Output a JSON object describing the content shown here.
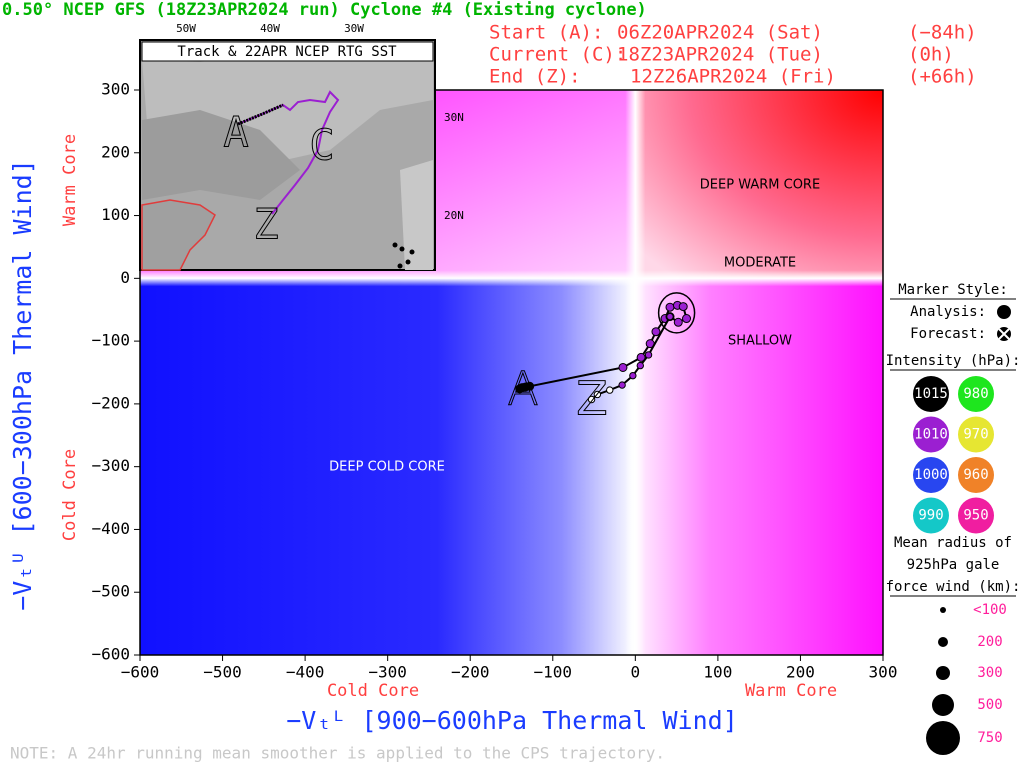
{
  "chart_data": {
    "type": "line",
    "title": "0.50° NCEP GFS (18Z23APR2024 run) Cyclone #4 (Existing cyclone)",
    "header": [
      [
        "Start (A):",
        "06Z20APR2024 (Sat)",
        "(−84h)"
      ],
      [
        "Current (C):",
        "18Z23APR2024 (Tue)",
        "(0h)"
      ],
      [
        "End (Z):",
        "12Z26APR2024 (Fri)",
        "(+66h)"
      ]
    ],
    "x_label": "−Vₜᴸ [900−600hPa Thermal Wind]",
    "y_label": "−Vₜᵁ [600−300hPa Thermal Wind]",
    "x_side_labels": [
      "Cold Core",
      "Warm Core"
    ],
    "y_side_labels": [
      "Warm Core",
      "Cold Core"
    ],
    "regions": [
      "DEEP WARM CORE",
      "MODERATE",
      "SHALLOW",
      "DEEP COLD CORE"
    ],
    "track_labels": [
      "A",
      "Z"
    ],
    "note": "NOTE:  A 24hr running mean smoother is applied to the CPS trajectory.",
    "xlim": [
      -600,
      300
    ],
    "ylim": [
      -600,
      300
    ],
    "xticks": [
      {
        "value": -600,
        "label": "−600"
      },
      {
        "value": -500,
        "label": "−500"
      },
      {
        "value": -400,
        "label": "−400"
      },
      {
        "value": -300,
        "label": "−300"
      },
      {
        "value": -200,
        "label": "−200"
      },
      {
        "value": -100,
        "label": "−100"
      },
      0,
      100,
      200,
      300
    ],
    "yticks": [
      {
        "value": -600,
        "label": "−600"
      },
      {
        "value": -500,
        "label": "−500"
      },
      {
        "value": -400,
        "label": "−400"
      },
      {
        "value": -300,
        "label": "−300"
      },
      {
        "value": -200,
        "label": "−200"
      },
      {
        "value": -100,
        "label": "−100"
      },
      0,
      100,
      200,
      300
    ],
    "series": [
      {
        "name": "Analysis:",
        "color": "#000000",
        "x": [
          -140,
          -137,
          -133,
          -128,
          -15,
          7,
          18,
          25,
          36,
          42,
          51,
          58,
          62,
          52,
          42
        ],
        "y": [
          -176,
          -174,
          -173,
          -172,
          -142,
          -126,
          -104,
          -85,
          -64,
          -46,
          -43,
          -45,
          -64,
          -70,
          -61
        ],
        "marker_colors": [
          "#000000",
          "#000000",
          "#000000",
          "#000000",
          "#9b1fd1",
          "#9b1fd1",
          "#9b1fd1",
          "#9b1fd1",
          "#9b1fd1",
          "#9b1fd1",
          "#9b1fd1",
          "#9b1fd1",
          "#9b1fd1",
          "#9b1fd1",
          "#9b1fd1"
        ]
      },
      {
        "name": "Forecast:",
        "color": "#000000",
        "x": [
          42,
          16,
          6,
          -3,
          -16,
          -31,
          -46,
          -53
        ],
        "y": [
          -61,
          -122,
          -139,
          -155,
          -170,
          -178,
          -185,
          -193
        ],
        "marker_colors": [
          "#9b1fd1",
          "#9b1fd1",
          "#9b1fd1",
          "#9b1fd1",
          "#9b1fd1",
          "#ffffff",
          "#ffffff",
          "#ffffff"
        ]
      }
    ],
    "legend": {
      "title": "Marker Style:",
      "intensity_title": "Intensity (hPa):",
      "intensity": [
        {
          "label": "1015",
          "color": "#000000"
        },
        {
          "label": "980",
          "color": "#1ee61e"
        },
        {
          "label": "1010",
          "color": "#9b1fd1"
        },
        {
          "label": "970",
          "color": "#e6e632"
        },
        {
          "label": "1000",
          "color": "#2846f0"
        },
        {
          "label": "960",
          "color": "#f08228"
        },
        {
          "label": "990",
          "color": "#14c8c8"
        },
        {
          "label": "950",
          "color": "#f01ea0"
        }
      ],
      "radius_title": [
        "Mean radius of",
        "925hPa gale",
        "force wind (km):"
      ],
      "radius": [
        "<100",
        "200",
        "300",
        "500",
        "750"
      ]
    },
    "inset": {
      "title": "Track & 22APR NCEP RTG SST",
      "lon_ticks": [
        "50W",
        "40W",
        "30W"
      ],
      "lat_ticks": [
        "30N",
        "20N"
      ],
      "labels": [
        "A",
        "C",
        "Z"
      ]
    }
  }
}
